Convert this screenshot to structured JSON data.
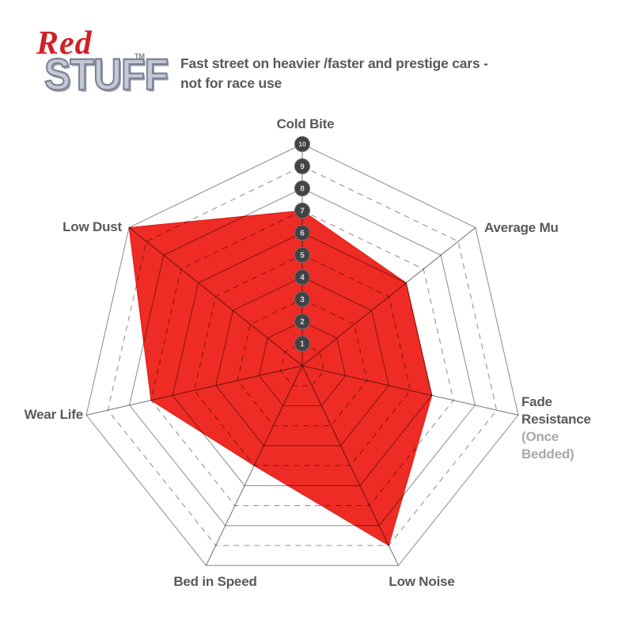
{
  "logo": {
    "red": "Red",
    "stuff": "STUFF",
    "tm": "TM"
  },
  "headline": {
    "line1": "Fast street on heavier /faster and prestige cars -",
    "line2": "not for race use"
  },
  "chart_data": {
    "type": "radar",
    "title": "Fast street on heavier /faster and prestige cars - not for race use",
    "axes": [
      {
        "label": "Cold Bite",
        "value": 7
      },
      {
        "label": "Average Mu",
        "value": 6
      },
      {
        "label": "Fade Resistance",
        "sublabel": "(Once Bedded)",
        "value": 6
      },
      {
        "label": "Low Noise",
        "value": 9
      },
      {
        "label": "Bed in Speed",
        "value": 5
      },
      {
        "label": "Wear Life",
        "value": 7
      },
      {
        "label": "Low Dust",
        "value": 10
      }
    ],
    "scale": {
      "min": 1,
      "max": 10,
      "ticks": [
        1,
        2,
        3,
        4,
        5,
        6,
        7,
        8,
        9,
        10
      ]
    },
    "legend": "none",
    "grid": "10 concentric heptagons, odd rings dashed, even rings solid",
    "colors": {
      "series_fill": "#ee2b24",
      "series_edge": "#dd1f19",
      "grid_line": "rgba(0,0,0,0.42)",
      "spoke_line": "rgba(0,0,0,0.5)",
      "tick_circle": "#424143",
      "tick_number": "#d9d9d9",
      "label_text": "#58595b",
      "sublabel_text": "#a7a9ac"
    }
  }
}
